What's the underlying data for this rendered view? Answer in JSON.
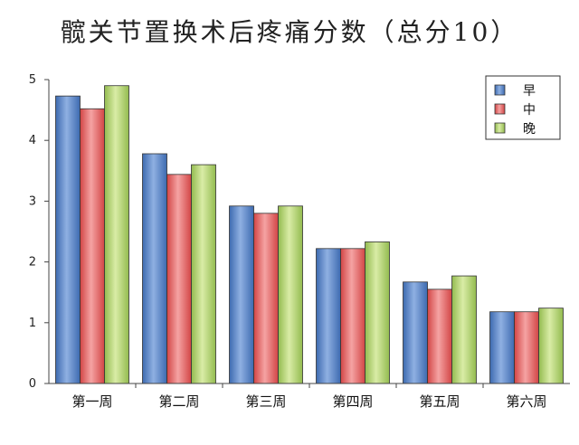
{
  "chart_data": {
    "type": "bar",
    "title": "髋关节置换术后疼痛分数（总分10）",
    "xlabel": "",
    "ylabel": "",
    "categories": [
      "第一周",
      "第二周",
      "第三周",
      "第四周",
      "第五周",
      "第六周"
    ],
    "series": [
      {
        "name": "早",
        "color": "#4f81bd",
        "values": [
          4.73,
          3.78,
          2.92,
          2.22,
          1.67,
          1.18
        ]
      },
      {
        "name": "中",
        "color": "#e05a5a",
        "values": [
          4.52,
          3.44,
          2.8,
          2.22,
          1.55,
          1.18
        ]
      },
      {
        "name": "晚",
        "color": "#9bbb59",
        "values": [
          4.9,
          3.6,
          2.92,
          2.33,
          1.77,
          1.24
        ]
      }
    ],
    "ylim": [
      0,
      5
    ],
    "yticks": [
      "0",
      "1",
      "2",
      "3",
      "4",
      "5"
    ],
    "grid": false,
    "legend_position": "top-right"
  }
}
